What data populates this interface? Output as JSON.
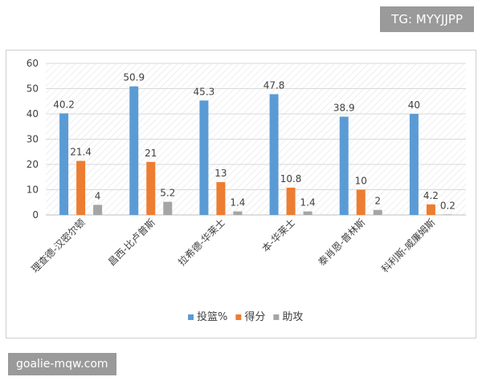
{
  "watermark_top": "TG: MYYJJPP",
  "watermark_bottom": "goalie-mqw.com",
  "colors": {
    "series_1": "#5b9bd5",
    "series_2": "#ed7d31",
    "series_3": "#a5a5a5",
    "grid": "#d9d9d9",
    "hatch": "#e4e4e4",
    "text": "#404040"
  },
  "chart_data": {
    "type": "bar",
    "categories": [
      "理查德-汉密尔顿",
      "昌西-比卢普斯",
      "拉希德-华莱士",
      "本-华莱士",
      "泰肖恩-普林斯",
      "科利斯-威廉姆斯"
    ],
    "series": [
      {
        "name": "投篮%",
        "values": [
          40.2,
          50.9,
          45.3,
          47.8,
          38.9,
          40
        ]
      },
      {
        "name": "得分",
        "values": [
          21.4,
          21,
          13,
          10.8,
          10,
          4.2
        ]
      },
      {
        "name": "助攻",
        "values": [
          4,
          5.2,
          1.4,
          1.4,
          2,
          0.2
        ]
      }
    ],
    "data_labels": [
      [
        "40.2",
        "50.9",
        "45.3",
        "47.8",
        "38.9",
        "40"
      ],
      [
        "21.4",
        "21",
        "13",
        "10.8",
        "10",
        "4.2"
      ],
      [
        "4",
        "5.2",
        "1.4",
        "1.4",
        "2",
        "0.2"
      ]
    ],
    "yticks": [
      "0",
      "10",
      "20",
      "30",
      "40",
      "50",
      "60"
    ],
    "ylim": [
      0,
      60
    ],
    "grid": true,
    "legend_position": "bottom"
  }
}
